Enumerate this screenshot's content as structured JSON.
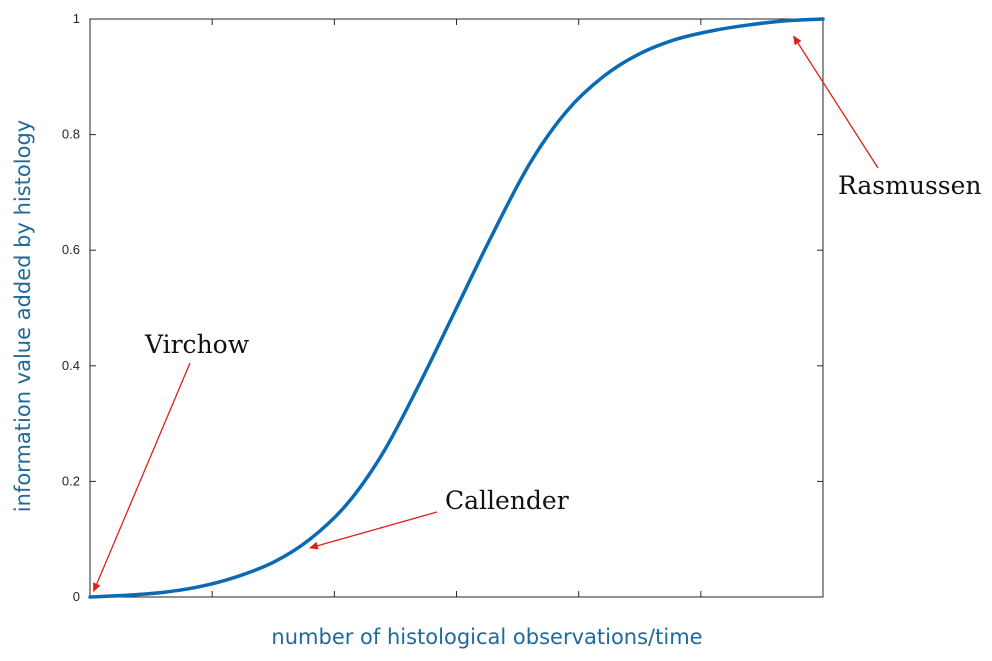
{
  "chart_data": {
    "type": "line",
    "title": "",
    "xlabel": "number of histological observations/time",
    "ylabel": "information value added by histology",
    "xlim": [
      0,
      1
    ],
    "ylim": [
      0,
      1
    ],
    "y_ticks": [
      "0",
      "0.2",
      "0.4",
      "0.6",
      "0.8",
      "1"
    ],
    "x_ticks_labeled": false,
    "grid": false,
    "line_color": "#0a6ab4",
    "arrow_color": "#e0201b",
    "series": [
      {
        "x": [
          0,
          0.05,
          0.1,
          0.15,
          0.2,
          0.25,
          0.3,
          0.35,
          0.4,
          0.45,
          0.5,
          0.55,
          0.6,
          0.65,
          0.7,
          0.75,
          0.8,
          0.85,
          0.9,
          0.95,
          1.0
        ],
        "y": [
          0,
          0.003,
          0.008,
          0.018,
          0.035,
          0.06,
          0.1,
          0.16,
          0.25,
          0.37,
          0.5,
          0.63,
          0.75,
          0.84,
          0.9,
          0.94,
          0.965,
          0.98,
          0.99,
          0.997,
          1.0
        ]
      }
    ],
    "annotations": [
      {
        "text": "Virchow",
        "target": [
          0.005,
          0.01
        ]
      },
      {
        "text": "Callender",
        "target": [
          0.3,
          0.085
        ]
      },
      {
        "text": "Rasmussen",
        "target": [
          0.96,
          0.97
        ]
      }
    ]
  }
}
